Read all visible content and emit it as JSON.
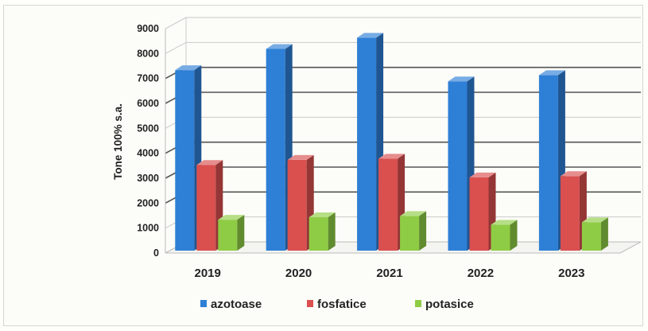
{
  "chart_data": {
    "type": "bar",
    "title": "",
    "xlabel": "",
    "ylabel": "Tone 100% s.a.",
    "ylim": [
      0,
      9000
    ],
    "yticks": [
      "0",
      "1000",
      "2000",
      "3000",
      "4000",
      "5000",
      "6000",
      "7000",
      "8000",
      "9000"
    ],
    "categories": [
      "2019",
      "2020",
      "2021",
      "2022",
      "2023"
    ],
    "series": [
      {
        "name": "azotoase",
        "color": "#2e7fd6",
        "values": [
          7400,
          8250,
          8700,
          6950,
          7200
        ]
      },
      {
        "name": "fosfatice",
        "color": "#d9504f",
        "values": [
          3600,
          3800,
          3850,
          3100,
          3150
        ]
      },
      {
        "name": "potasice",
        "color": "#8fcc45",
        "values": [
          1400,
          1500,
          1550,
          1200,
          1300
        ]
      }
    ],
    "grid": true,
    "legend_position": "bottom",
    "style": "3d-clustered-column"
  }
}
